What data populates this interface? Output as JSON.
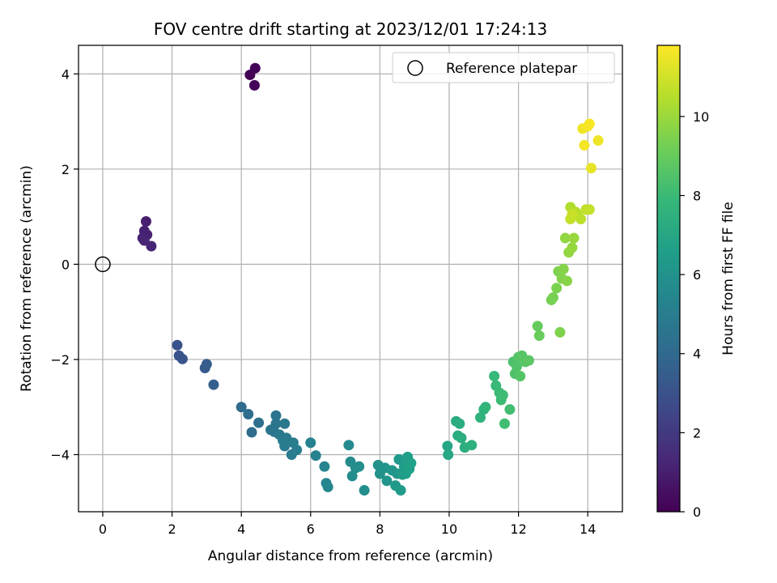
{
  "chart_data": {
    "type": "scatter",
    "title": "FOV centre drift starting at 2023/12/01 17:24:13",
    "xlabel": "Angular distance from reference (arcmin)",
    "ylabel": "Rotation from reference (arcmin)",
    "xlim": [
      -0.7,
      15.0
    ],
    "ylim": [
      -5.2,
      4.6
    ],
    "x_ticks": [
      0,
      2,
      4,
      6,
      8,
      10,
      12,
      14
    ],
    "x_tick_labels": [
      "0",
      "2",
      "4",
      "6",
      "8",
      "10",
      "12",
      "14"
    ],
    "y_ticks": [
      -4,
      -2,
      0,
      2,
      4
    ],
    "y_tick_labels": [
      "−4",
      "−2",
      "0",
      "2",
      "4"
    ],
    "grid": true,
    "legend": {
      "placement": "top-right",
      "entries": [
        {
          "label": "Reference platepar",
          "marker": "open-circle"
        }
      ]
    },
    "reference_point": {
      "x": 0,
      "y": 0
    },
    "colorbar": {
      "label": "Hours from first FF file",
      "colormap": "viridis",
      "range": [
        0,
        11.8
      ],
      "ticks": [
        0,
        2,
        4,
        6,
        8,
        10
      ],
      "tick_labels": [
        "0",
        "2",
        "4",
        "6",
        "8",
        "10"
      ]
    },
    "colormap_stops": [
      "#440154",
      "#482878",
      "#3e4989",
      "#31688e",
      "#26828e",
      "#1f9e89",
      "#35b779",
      "#6ece58",
      "#b5de2b",
      "#fde725"
    ],
    "x": [
      4.25,
      4.4,
      4.38,
      1.25,
      1.2,
      1.28,
      1.15,
      1.2,
      1.4,
      2.15,
      2.2,
      2.3,
      2.95,
      3.0,
      3.2,
      4.0,
      4.2,
      4.3,
      4.5,
      4.85,
      5.0,
      5.0,
      4.95,
      5.1,
      5.25,
      5.3,
      5.25,
      5.2,
      5.45,
      5.5,
      5.6,
      6.0,
      6.15,
      6.4,
      6.45,
      6.5,
      7.1,
      7.15,
      7.2,
      7.3,
      7.4,
      7.55,
      7.95,
      8.0,
      8.15,
      8.2,
      8.35,
      8.5,
      8.45,
      8.55,
      8.6,
      8.65,
      8.7,
      8.75,
      8.8,
      8.85,
      8.9,
      9.95,
      9.97,
      10.2,
      10.25,
      10.3,
      10.35,
      10.45,
      10.65,
      10.9,
      11.0,
      11.05,
      11.3,
      11.35,
      11.45,
      11.5,
      11.55,
      11.6,
      11.75,
      11.85,
      11.9,
      11.95,
      12.0,
      12.05,
      12.1,
      12.2,
      12.3,
      12.55,
      12.6,
      12.95,
      13.0,
      13.1,
      13.15,
      13.2,
      13.25,
      13.3,
      13.4,
      13.35,
      13.45,
      13.5,
      13.55,
      13.6,
      13.65,
      13.7,
      13.8,
      13.85,
      13.9,
      13.95,
      14.0,
      14.05,
      14.1,
      14.3,
      14.05,
      13.5,
      13.55
    ],
    "y": [
      3.98,
      4.12,
      3.76,
      0.9,
      0.7,
      0.62,
      0.55,
      0.5,
      0.38,
      -1.7,
      -1.92,
      -1.99,
      -2.18,
      -2.1,
      -2.53,
      -3.0,
      -3.15,
      -3.53,
      -3.33,
      -3.48,
      -3.18,
      -3.35,
      -3.52,
      -3.58,
      -3.35,
      -3.65,
      -3.82,
      -3.7,
      -4.0,
      -3.75,
      -3.9,
      -3.75,
      -4.02,
      -4.25,
      -4.6,
      -4.68,
      -3.8,
      -4.15,
      -4.45,
      -4.28,
      -4.25,
      -4.75,
      -4.22,
      -4.4,
      -4.28,
      -4.55,
      -4.33,
      -4.4,
      -4.65,
      -4.1,
      -4.75,
      -4.42,
      -4.25,
      -4.4,
      -4.05,
      -4.3,
      -4.18,
      -3.82,
      -4.0,
      -3.3,
      -3.6,
      -3.35,
      -3.65,
      -3.85,
      -3.8,
      -3.22,
      -3.05,
      -3.0,
      -2.35,
      -2.55,
      -2.7,
      -2.85,
      -2.75,
      -3.35,
      -3.05,
      -2.05,
      -2.3,
      -2.15,
      -1.95,
      -2.35,
      -1.92,
      -2.05,
      -2.02,
      -1.3,
      -1.5,
      -0.75,
      -0.7,
      -0.5,
      -0.15,
      -1.43,
      -0.3,
      -0.1,
      -0.35,
      0.55,
      0.25,
      1.2,
      0.35,
      0.55,
      1.1,
      1.05,
      0.95,
      2.85,
      2.5,
      1.15,
      2.9,
      2.95,
      2.02,
      2.6,
      1.15,
      0.95,
      1.05
    ],
    "hours": [
      0.05,
      0.1,
      0.15,
      1.0,
      1.05,
      1.1,
      1.15,
      1.2,
      1.25,
      3.0,
      3.05,
      3.1,
      3.4,
      3.45,
      3.6,
      4.1,
      4.15,
      4.2,
      4.3,
      4.5,
      4.55,
      4.6,
      4.65,
      4.7,
      4.75,
      4.8,
      4.85,
      4.9,
      4.95,
      5.0,
      5.05,
      5.2,
      5.25,
      5.35,
      5.4,
      5.45,
      5.6,
      5.65,
      5.7,
      5.75,
      5.8,
      5.85,
      6.0,
      6.05,
      6.1,
      6.15,
      6.2,
      6.25,
      6.3,
      6.35,
      6.4,
      6.45,
      6.5,
      6.55,
      6.6,
      6.65,
      6.7,
      7.0,
      7.05,
      7.2,
      7.25,
      7.3,
      7.35,
      7.4,
      7.45,
      7.6,
      7.65,
      7.7,
      7.9,
      7.95,
      8.0,
      8.05,
      8.1,
      8.15,
      8.2,
      8.4,
      8.45,
      8.5,
      8.55,
      8.6,
      8.65,
      8.7,
      8.75,
      9.0,
      9.05,
      9.3,
      9.35,
      9.4,
      9.45,
      9.5,
      9.55,
      9.6,
      9.65,
      9.8,
      9.85,
      10.4,
      9.9,
      9.95,
      10.5,
      10.55,
      10.6,
      11.5,
      11.6,
      10.7,
      11.65,
      11.7,
      11.4,
      11.55,
      10.75,
      10.8,
      10.85
    ]
  }
}
